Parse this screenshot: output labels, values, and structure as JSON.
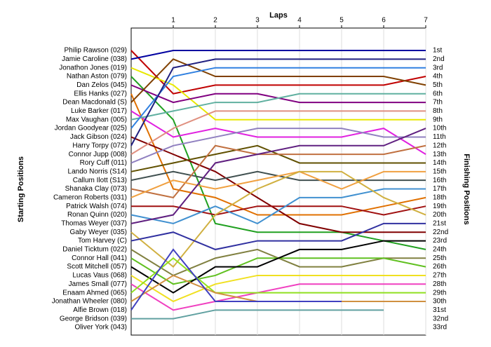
{
  "chart_data": {
    "type": "line",
    "title": "Laps",
    "y_label": "Starting Positions",
    "y2_label": "Finishing Positions",
    "x": [
      0,
      1,
      2,
      3,
      4,
      5,
      6,
      7
    ],
    "xlim": [
      0,
      7
    ],
    "xticks": [
      1,
      2,
      3,
      4,
      5,
      6,
      7
    ],
    "ylim": [
      1,
      33
    ],
    "y_inverted": true,
    "grid": true,
    "finishing_positions": [
      "1st",
      "2nd",
      "3rd",
      "4th",
      "5th",
      "6th",
      "7th",
      "8th",
      "9th",
      "10th",
      "11th",
      "12th",
      "13th",
      "14th",
      "15th",
      "16th",
      "17th",
      "18th",
      "19th",
      "20th",
      "21st",
      "22nd",
      "23rd",
      "24th",
      "25th",
      "26th",
      "27th",
      "28th",
      "29th",
      "30th",
      "31st",
      "32nd",
      "33rd"
    ],
    "series": [
      {
        "name": "Philip Rawson (029)",
        "color": "#c00000",
        "values": [
          1,
          6,
          5,
          5,
          5,
          5,
          5,
          4
        ]
      },
      {
        "name": "Jamie Caroline (038)",
        "color": "#0000a0",
        "values": [
          2,
          1,
          1,
          1,
          1,
          1,
          1,
          1
        ]
      },
      {
        "name": "Jonathon Jones (019)",
        "color": "#e8e800",
        "values": [
          3,
          5,
          9,
          9,
          9,
          9,
          9,
          9
        ]
      },
      {
        "name": "Nathan Aston (079)",
        "color": "#20a020",
        "values": [
          4,
          9,
          21,
          22,
          22,
          22,
          23,
          24
        ]
      },
      {
        "name": "Dan Zelos (045)",
        "color": "#800080",
        "values": [
          5,
          7,
          6,
          6,
          7,
          7,
          7,
          7
        ]
      },
      {
        "name": "Ellis Hanks (027)",
        "color": "#e07000",
        "values": [
          6,
          17,
          18,
          20,
          20,
          20,
          19,
          18
        ]
      },
      {
        "name": "Dean Macdonald (S)",
        "color": "#804000",
        "values": [
          7,
          2,
          4,
          4,
          4,
          4,
          4,
          5
        ]
      },
      {
        "name": "Luke Barker (017)",
        "color": "#e020e0",
        "values": [
          8,
          11,
          10,
          11,
          11,
          11,
          10,
          13
        ]
      },
      {
        "name": "Max Vaughan (005)",
        "color": "#60b0a0",
        "values": [
          9,
          8,
          7,
          7,
          6,
          6,
          6,
          6
        ]
      },
      {
        "name": "Jordan Goodyear (025)",
        "color": "#3080e0",
        "values": [
          10,
          4,
          3,
          3,
          3,
          3,
          3,
          3
        ]
      },
      {
        "name": "Jack Gibson (024)",
        "color": "#800000",
        "values": [
          11,
          13,
          15,
          18,
          21,
          22,
          22,
          22
        ]
      },
      {
        "name": "Harry Torpy (072)",
        "color": "#202080",
        "values": [
          12,
          3,
          2,
          2,
          2,
          2,
          2,
          2
        ]
      },
      {
        "name": "Connor Jupp (008)",
        "color": "#e09080",
        "values": [
          13,
          10,
          8,
          8,
          8,
          8,
          8,
          8
        ]
      },
      {
        "name": "Rory Cuff (011)",
        "color": "#9080c0",
        "values": [
          14,
          12,
          11,
          10,
          10,
          10,
          11,
          11
        ]
      },
      {
        "name": "Lando Norris (S14)",
        "color": "#605000",
        "values": [
          15,
          14,
          13,
          12,
          14,
          14,
          14,
          14
        ]
      },
      {
        "name": "Callum Ilott (S13)",
        "color": "#405050",
        "values": [
          16,
          15,
          16,
          15,
          16,
          16,
          16,
          16
        ]
      },
      {
        "name": "Shanaka Clay (073)",
        "color": "#c07040",
        "values": [
          17,
          18,
          12,
          13,
          13,
          13,
          13,
          12
        ]
      },
      {
        "name": "Cameron Roberts (031)",
        "color": "#f0a040",
        "values": [
          18,
          16,
          17,
          16,
          15,
          17,
          15,
          15
        ]
      },
      {
        "name": "Patrick Walsh (074)",
        "color": "#a01010",
        "values": [
          19,
          19,
          20,
          19,
          19,
          19,
          20,
          19
        ]
      },
      {
        "name": "Ronan Quinn (020)",
        "color": "#4090d0",
        "values": [
          20,
          21,
          19,
          21,
          18,
          18,
          17,
          17
        ]
      },
      {
        "name": "Thomas Weyer (037)",
        "color": "#602080",
        "values": [
          21,
          20,
          14,
          13,
          12,
          12,
          12,
          10
        ]
      },
      {
        "name": "Gaby Weyer (035)",
        "color": "#d0b040",
        "values": [
          22,
          26,
          20,
          17,
          15,
          15,
          18,
          20
        ]
      },
      {
        "name": "Tom Harvey (C)",
        "color": "#3030a0",
        "values": [
          23,
          22,
          24,
          23,
          23,
          23,
          21,
          21
        ]
      },
      {
        "name": "Daniel Ticktum (022)",
        "color": "#808040",
        "values": [
          24,
          27,
          25,
          24,
          26,
          26,
          25,
          25
        ]
      },
      {
        "name": "Connor Hall (041)",
        "color": "#60c020",
        "values": [
          25,
          28,
          27,
          25,
          25,
          25,
          25,
          26
        ]
      },
      {
        "name": "Scott Mitchell (057)",
        "color": "#000000",
        "values": [
          26,
          29,
          26,
          26,
          24,
          24,
          23,
          23
        ]
      },
      {
        "name": "Lucas Vaus (068)",
        "color": "#f0e020",
        "values": [
          27,
          30,
          28,
          27,
          27,
          27,
          27,
          27
        ]
      },
      {
        "name": "James Small (077)",
        "color": "#f040c0",
        "values": [
          28,
          31,
          30,
          29,
          28,
          28,
          28,
          28
        ]
      },
      {
        "name": "Enaam Ahmed (065)",
        "color": "#90e020",
        "values": [
          29,
          25,
          29,
          29,
          29,
          29,
          29,
          29
        ]
      },
      {
        "name": "Jonathan Wheeler (080)",
        "color": "#d09040",
        "values": [
          30,
          27,
          29,
          30,
          30,
          30,
          30,
          30
        ]
      },
      {
        "name": "Alfie Brown (018)",
        "color": "#4040c0",
        "values": [
          31,
          24,
          30,
          30,
          30,
          30,
          null,
          null
        ]
      },
      {
        "name": "George Bridson (039)",
        "color": "#60a0a0",
        "values": [
          32,
          32,
          31,
          31,
          31,
          31,
          31,
          null
        ]
      },
      {
        "name": "Oliver York (043)",
        "color": "#a0a0a0",
        "values": [
          33,
          null,
          null,
          null,
          null,
          null,
          null,
          null
        ]
      }
    ]
  }
}
